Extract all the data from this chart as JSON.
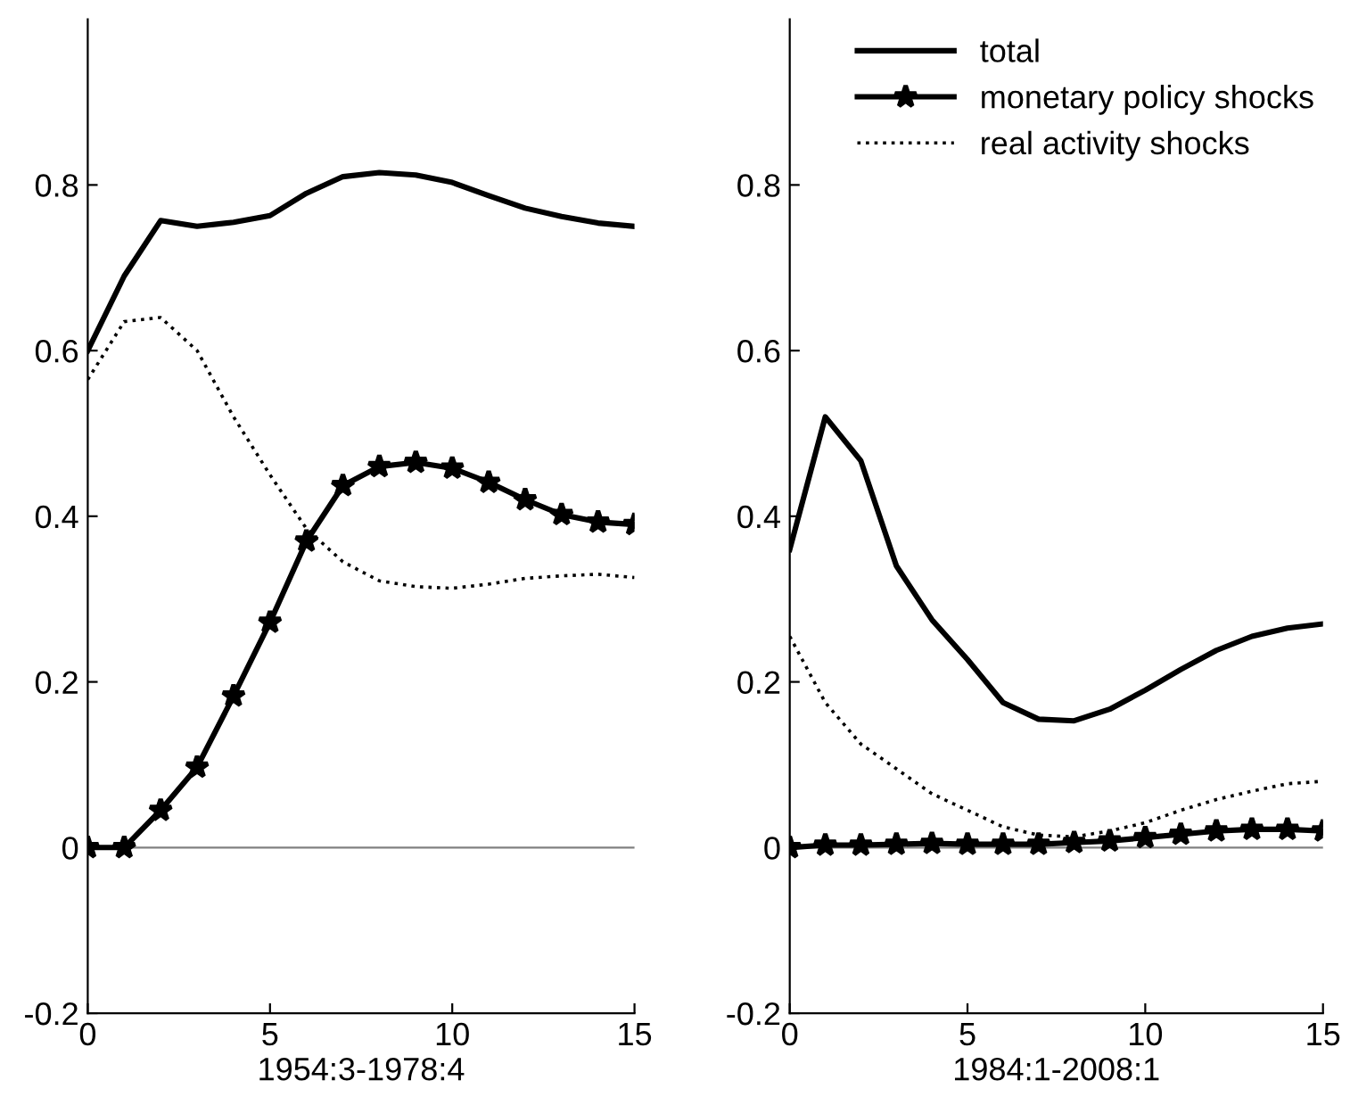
{
  "chart_data": [
    {
      "type": "line",
      "xlabel": "1954:3-1978:4",
      "x": [
        0,
        1,
        2,
        3,
        4,
        5,
        6,
        7,
        8,
        9,
        10,
        11,
        12,
        13,
        14,
        15
      ],
      "xlim": [
        0,
        15
      ],
      "xticks": [
        0,
        5,
        10,
        15
      ],
      "ylim": [
        -0.2,
        1.0
      ],
      "yticks": [
        {
          "value": -0.2,
          "label": "-0.2"
        },
        0,
        0.2,
        0.4,
        0.6,
        0.8
      ],
      "grid": false,
      "legend": false,
      "ref_lines": [
        {
          "axis": "y",
          "value": 0,
          "color": "#808080"
        }
      ],
      "series": [
        {
          "color": "#000000",
          "line_style": "solid",
          "marker": "none",
          "values": [
            0.6,
            0.69,
            0.757,
            0.75,
            0.755,
            0.763,
            0.79,
            0.81,
            0.815,
            0.812,
            0.803,
            0.787,
            0.772,
            0.762,
            0.754,
            0.75
          ]
        },
        {
          "color": "#000000",
          "line_style": "solid",
          "marker": "star",
          "values": [
            0,
            0,
            0.045,
            0.097,
            0.183,
            0.272,
            0.37,
            0.437,
            0.46,
            0.465,
            0.458,
            0.441,
            0.42,
            0.402,
            0.393,
            0.39
          ]
        },
        {
          "color": "#000000",
          "line_style": "dotted",
          "marker": "none",
          "values": [
            0.565,
            0.635,
            0.64,
            0.6,
            0.52,
            0.45,
            0.385,
            0.345,
            0.322,
            0.315,
            0.313,
            0.318,
            0.325,
            0.328,
            0.33,
            0.326
          ]
        }
      ]
    },
    {
      "type": "line",
      "xlabel": "1984:1-2008:1",
      "x": [
        0,
        1,
        2,
        3,
        4,
        5,
        6,
        7,
        8,
        9,
        10,
        11,
        12,
        13,
        14,
        15
      ],
      "xlim": [
        0,
        15
      ],
      "xticks": [
        0,
        5,
        10,
        15
      ],
      "ylim": [
        -0.2,
        1.0
      ],
      "yticks": [
        {
          "value": -0.2,
          "label": "-0.2"
        },
        0,
        0.2,
        0.4,
        0.6,
        0.8
      ],
      "grid": false,
      "legend": "top right",
      "ref_lines": [
        {
          "axis": "y",
          "value": 0,
          "color": "#808080"
        }
      ],
      "series": [
        {
          "name": "total",
          "color": "#000000",
          "line_style": "solid",
          "marker": "none",
          "values": [
            0.36,
            0.52,
            0.467,
            0.34,
            0.275,
            0.227,
            0.175,
            0.155,
            0.153,
            0.167,
            0.19,
            0.215,
            0.238,
            0.255,
            0.265,
            0.27
          ]
        },
        {
          "name": "monetary policy shocks",
          "color": "#000000",
          "line_style": "solid",
          "marker": "star",
          "values": [
            0,
            0.003,
            0.003,
            0.004,
            0.005,
            0.004,
            0.004,
            0.004,
            0.006,
            0.008,
            0.012,
            0.016,
            0.02,
            0.022,
            0.022,
            0.02
          ]
        },
        {
          "name": "real activity shocks",
          "color": "#000000",
          "line_style": "dotted",
          "marker": "none",
          "values": [
            0.255,
            0.175,
            0.125,
            0.095,
            0.065,
            0.045,
            0.025,
            0.015,
            0.013,
            0.02,
            0.03,
            0.045,
            0.058,
            0.068,
            0.077,
            0.08
          ]
        }
      ]
    }
  ]
}
